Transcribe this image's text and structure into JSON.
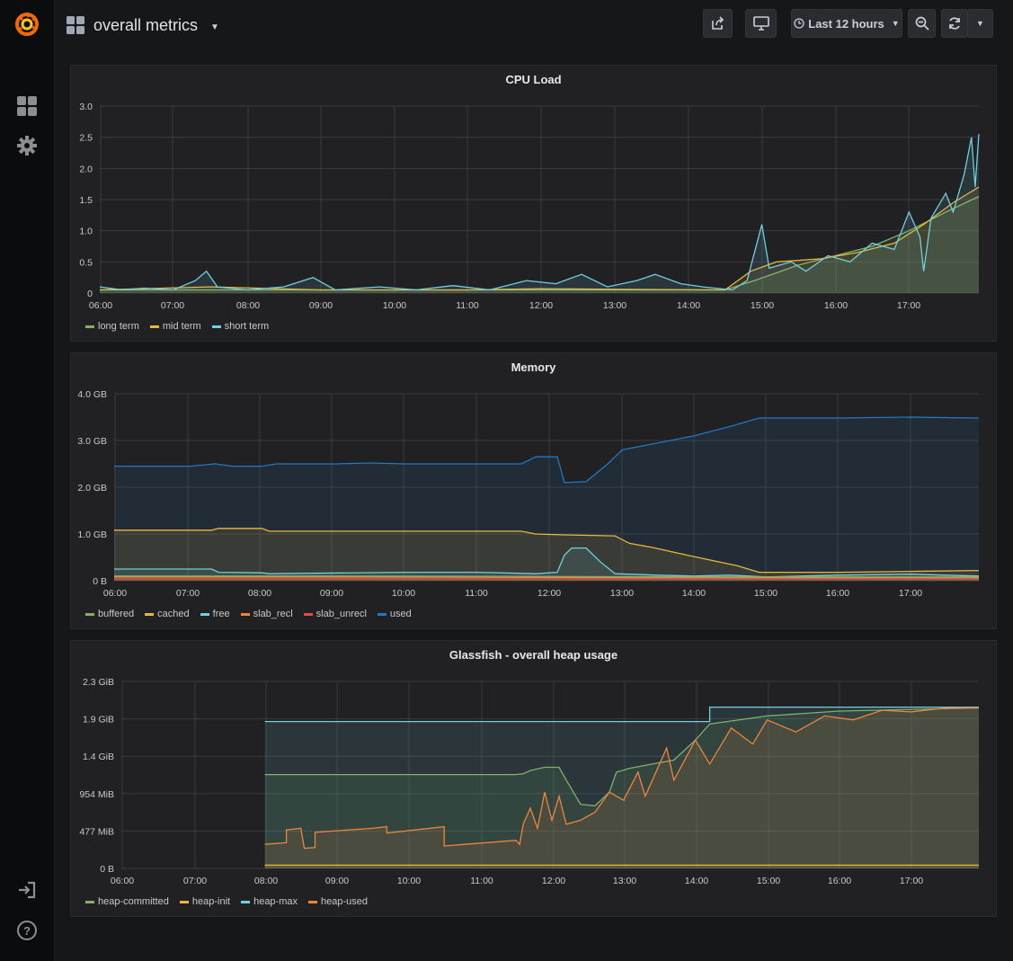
{
  "dashboard": {
    "title": "overall metrics"
  },
  "toolbar": {
    "time_range_label": "Last 12 hours"
  },
  "colors": {
    "green": "#7eb26d",
    "yellow": "#eab839",
    "cyan": "#6ed0e0",
    "orange": "#ef843c",
    "red": "#e24d42",
    "blue": "#1f78c1"
  },
  "panels": [
    {
      "title": "CPU Load",
      "legend": [
        {
          "label": "long term",
          "color": "#7eb26d"
        },
        {
          "label": "mid term",
          "color": "#eab839"
        },
        {
          "label": "short term",
          "color": "#6ed0e0"
        }
      ]
    },
    {
      "title": "Memory",
      "legend": [
        {
          "label": "buffered",
          "color": "#7eb26d"
        },
        {
          "label": "cached",
          "color": "#eab839"
        },
        {
          "label": "free",
          "color": "#6ed0e0"
        },
        {
          "label": "slab_recl",
          "color": "#ef843c"
        },
        {
          "label": "slab_unrecl",
          "color": "#e24d42"
        },
        {
          "label": "used",
          "color": "#1f78c1"
        }
      ]
    },
    {
      "title": "Glassfish - overall heap usage",
      "legend": [
        {
          "label": "heap-committed",
          "color": "#7eb26d"
        },
        {
          "label": "heap-init",
          "color": "#eab839"
        },
        {
          "label": "heap-max",
          "color": "#6ed0e0"
        },
        {
          "label": "heap-used",
          "color": "#ef843c"
        }
      ]
    }
  ],
  "chart_data": [
    {
      "type": "line",
      "title": "CPU Load",
      "x_ticks": [
        "06:00",
        "07:00",
        "08:00",
        "09:00",
        "10:00",
        "11:00",
        "12:00",
        "13:00",
        "14:00",
        "15:00",
        "16:00",
        "17:00"
      ],
      "y_ticks": [
        "0",
        "0.5",
        "1.0",
        "1.5",
        "2.0",
        "2.5",
        "3.0"
      ],
      "x_range": [
        6.0,
        17.95
      ],
      "y_range": [
        0,
        3.0
      ],
      "series": [
        {
          "name": "long term",
          "color": "#7eb26d",
          "points": [
            [
              6.0,
              0.05
            ],
            [
              8.0,
              0.05
            ],
            [
              10.0,
              0.05
            ],
            [
              12.0,
              0.05
            ],
            [
              14.5,
              0.05
            ],
            [
              14.9,
              0.2
            ],
            [
              15.5,
              0.45
            ],
            [
              16.0,
              0.6
            ],
            [
              16.5,
              0.75
            ],
            [
              17.0,
              1.0
            ],
            [
              17.5,
              1.3
            ],
            [
              17.95,
              1.55
            ]
          ]
        },
        {
          "name": "mid term",
          "color": "#eab839",
          "points": [
            [
              6.0,
              0.05
            ],
            [
              7.5,
              0.1
            ],
            [
              9.0,
              0.05
            ],
            [
              11.0,
              0.05
            ],
            [
              12.0,
              0.07
            ],
            [
              13.0,
              0.06
            ],
            [
              14.5,
              0.05
            ],
            [
              14.85,
              0.35
            ],
            [
              15.2,
              0.5
            ],
            [
              15.8,
              0.55
            ],
            [
              16.3,
              0.65
            ],
            [
              16.8,
              0.8
            ],
            [
              17.2,
              1.1
            ],
            [
              17.6,
              1.45
            ],
            [
              17.95,
              1.7
            ]
          ]
        },
        {
          "name": "short term",
          "color": "#6ed0e0",
          "points": [
            [
              6.0,
              0.1
            ],
            [
              6.3,
              0.05
            ],
            [
              6.6,
              0.08
            ],
            [
              7.0,
              0.05
            ],
            [
              7.3,
              0.2
            ],
            [
              7.45,
              0.35
            ],
            [
              7.6,
              0.1
            ],
            [
              8.0,
              0.05
            ],
            [
              8.5,
              0.1
            ],
            [
              8.9,
              0.25
            ],
            [
              9.2,
              0.05
            ],
            [
              9.8,
              0.1
            ],
            [
              10.3,
              0.05
            ],
            [
              10.8,
              0.12
            ],
            [
              11.3,
              0.05
            ],
            [
              11.8,
              0.2
            ],
            [
              12.2,
              0.15
            ],
            [
              12.55,
              0.3
            ],
            [
              12.9,
              0.1
            ],
            [
              13.3,
              0.2
            ],
            [
              13.55,
              0.3
            ],
            [
              13.9,
              0.15
            ],
            [
              14.2,
              0.1
            ],
            [
              14.6,
              0.05
            ],
            [
              14.8,
              0.2
            ],
            [
              15.0,
              1.1
            ],
            [
              15.1,
              0.4
            ],
            [
              15.4,
              0.5
            ],
            [
              15.6,
              0.35
            ],
            [
              15.9,
              0.6
            ],
            [
              16.2,
              0.5
            ],
            [
              16.5,
              0.8
            ],
            [
              16.8,
              0.7
            ],
            [
              17.0,
              1.3
            ],
            [
              17.15,
              0.9
            ],
            [
              17.2,
              0.35
            ],
            [
              17.3,
              1.2
            ],
            [
              17.5,
              1.6
            ],
            [
              17.6,
              1.3
            ],
            [
              17.75,
              1.9
            ],
            [
              17.85,
              2.5
            ],
            [
              17.9,
              1.7
            ],
            [
              17.95,
              2.55
            ]
          ]
        }
      ]
    },
    {
      "type": "area",
      "title": "Memory",
      "x_ticks": [
        "06:00",
        "07:00",
        "08:00",
        "09:00",
        "10:00",
        "11:00",
        "12:00",
        "13:00",
        "14:00",
        "15:00",
        "16:00",
        "17:00"
      ],
      "y_ticks": [
        "0 B",
        "1.0 GB",
        "2.0 GB",
        "3.0 GB",
        "4.0 GB"
      ],
      "x_range": [
        5.95,
        17.95
      ],
      "y_range": [
        0,
        4.0
      ],
      "series": [
        {
          "name": "used",
          "color": "#1f78c1",
          "points": [
            [
              5.95,
              2.45
            ],
            [
              7.0,
              2.45
            ],
            [
              7.35,
              2.5
            ],
            [
              7.6,
              2.45
            ],
            [
              8.0,
              2.45
            ],
            [
              8.2,
              2.5
            ],
            [
              9.0,
              2.5
            ],
            [
              9.5,
              2.52
            ],
            [
              10.0,
              2.5
            ],
            [
              11.0,
              2.5
            ],
            [
              11.6,
              2.5
            ],
            [
              11.8,
              2.65
            ],
            [
              12.1,
              2.65
            ],
            [
              12.2,
              2.1
            ],
            [
              12.5,
              2.12
            ],
            [
              12.8,
              2.5
            ],
            [
              13.0,
              2.8
            ],
            [
              13.5,
              2.95
            ],
            [
              14.0,
              3.1
            ],
            [
              14.5,
              3.3
            ],
            [
              14.9,
              3.48
            ],
            [
              15.5,
              3.48
            ],
            [
              16.0,
              3.48
            ],
            [
              17.0,
              3.5
            ],
            [
              17.95,
              3.48
            ]
          ]
        },
        {
          "name": "cached",
          "color": "#eab839",
          "points": [
            [
              5.95,
              1.08
            ],
            [
              7.3,
              1.08
            ],
            [
              7.4,
              1.12
            ],
            [
              8.0,
              1.12
            ],
            [
              8.1,
              1.06
            ],
            [
              10.0,
              1.06
            ],
            [
              11.6,
              1.06
            ],
            [
              11.8,
              1.0
            ],
            [
              12.2,
              0.98
            ],
            [
              12.9,
              0.96
            ],
            [
              13.1,
              0.8
            ],
            [
              13.4,
              0.72
            ],
            [
              13.8,
              0.58
            ],
            [
              14.2,
              0.45
            ],
            [
              14.6,
              0.32
            ],
            [
              14.9,
              0.18
            ],
            [
              15.3,
              0.18
            ],
            [
              16.0,
              0.18
            ],
            [
              17.0,
              0.2
            ],
            [
              17.95,
              0.22
            ]
          ]
        },
        {
          "name": "free",
          "color": "#6ed0e0",
          "points": [
            [
              5.95,
              0.25
            ],
            [
              7.3,
              0.25
            ],
            [
              7.4,
              0.18
            ],
            [
              8.0,
              0.17
            ],
            [
              8.1,
              0.15
            ],
            [
              10.0,
              0.18
            ],
            [
              11.0,
              0.18
            ],
            [
              11.8,
              0.15
            ],
            [
              12.1,
              0.18
            ],
            [
              12.2,
              0.55
            ],
            [
              12.3,
              0.7
            ],
            [
              12.5,
              0.7
            ],
            [
              12.7,
              0.4
            ],
            [
              12.9,
              0.15
            ],
            [
              13.5,
              0.12
            ],
            [
              14.0,
              0.1
            ],
            [
              14.5,
              0.12
            ],
            [
              15.0,
              0.08
            ],
            [
              15.5,
              0.1
            ],
            [
              16.0,
              0.12
            ],
            [
              17.0,
              0.14
            ],
            [
              17.95,
              0.1
            ]
          ]
        },
        {
          "name": "buffered",
          "color": "#7eb26d",
          "points": [
            [
              5.95,
              0.1
            ],
            [
              9.0,
              0.1
            ],
            [
              12.0,
              0.09
            ],
            [
              15.0,
              0.08
            ],
            [
              17.95,
              0.08
            ]
          ]
        },
        {
          "name": "slab_recl",
          "color": "#ef843c",
          "points": [
            [
              5.95,
              0.08
            ],
            [
              9.0,
              0.08
            ],
            [
              12.0,
              0.07
            ],
            [
              15.0,
              0.06
            ],
            [
              17.95,
              0.06
            ]
          ]
        },
        {
          "name": "slab_unrecl",
          "color": "#e24d42",
          "points": [
            [
              5.95,
              0.04
            ],
            [
              17.95,
              0.04
            ]
          ]
        }
      ]
    },
    {
      "type": "area",
      "title": "Glassfish - overall heap usage",
      "x_ticks": [
        "06:00",
        "07:00",
        "08:00",
        "09:00",
        "10:00",
        "11:00",
        "12:00",
        "13:00",
        "14:00",
        "15:00",
        "16:00",
        "17:00"
      ],
      "y_ticks": [
        "0 B",
        "477 MiB",
        "954 MiB",
        "1.4 GiB",
        "1.9 GiB",
        "2.3 GiB"
      ],
      "x_range": [
        6.0,
        17.95
      ],
      "y_range": [
        0,
        2.33
      ],
      "series": [
        {
          "name": "heap-max",
          "color": "#6ed0e0",
          "points": [
            [
              8.0,
              1.83
            ],
            [
              12.0,
              1.83
            ],
            [
              14.2,
              1.83
            ],
            [
              14.2,
              2.01
            ],
            [
              17.95,
              2.01
            ]
          ]
        },
        {
          "name": "heap-committed",
          "color": "#7eb26d",
          "points": [
            [
              8.0,
              1.17
            ],
            [
              11.5,
              1.17
            ],
            [
              11.6,
              1.18
            ],
            [
              11.7,
              1.22
            ],
            [
              11.9,
              1.26
            ],
            [
              12.1,
              1.26
            ],
            [
              12.2,
              1.1
            ],
            [
              12.4,
              0.8
            ],
            [
              12.6,
              0.78
            ],
            [
              12.8,
              0.95
            ],
            [
              12.9,
              1.2
            ],
            [
              13.1,
              1.25
            ],
            [
              13.4,
              1.3
            ],
            [
              13.7,
              1.35
            ],
            [
              14.0,
              1.6
            ],
            [
              14.2,
              1.8
            ],
            [
              15.0,
              1.9
            ],
            [
              16.0,
              1.96
            ],
            [
              17.95,
              2.0
            ]
          ]
        },
        {
          "name": "heap-used",
          "color": "#ef843c",
          "points": [
            [
              8.0,
              0.3
            ],
            [
              8.3,
              0.32
            ],
            [
              8.3,
              0.48
            ],
            [
              8.5,
              0.5
            ],
            [
              8.55,
              0.25
            ],
            [
              8.7,
              0.26
            ],
            [
              8.7,
              0.45
            ],
            [
              9.5,
              0.5
            ],
            [
              9.7,
              0.52
            ],
            [
              9.7,
              0.44
            ],
            [
              10.5,
              0.52
            ],
            [
              10.5,
              0.28
            ],
            [
              11.5,
              0.35
            ],
            [
              11.55,
              0.3
            ],
            [
              11.6,
              0.55
            ],
            [
              11.7,
              0.75
            ],
            [
              11.8,
              0.5
            ],
            [
              11.9,
              0.95
            ],
            [
              12.0,
              0.6
            ],
            [
              12.1,
              0.9
            ],
            [
              12.2,
              0.55
            ],
            [
              12.4,
              0.6
            ],
            [
              12.6,
              0.7
            ],
            [
              12.8,
              0.95
            ],
            [
              13.0,
              0.85
            ],
            [
              13.2,
              1.2
            ],
            [
              13.3,
              0.9
            ],
            [
              13.6,
              1.5
            ],
            [
              13.7,
              1.1
            ],
            [
              14.0,
              1.6
            ],
            [
              14.2,
              1.3
            ],
            [
              14.5,
              1.75
            ],
            [
              14.8,
              1.55
            ],
            [
              15.0,
              1.85
            ],
            [
              15.4,
              1.7
            ],
            [
              15.8,
              1.9
            ],
            [
              16.2,
              1.85
            ],
            [
              16.6,
              1.97
            ],
            [
              17.0,
              1.95
            ],
            [
              17.5,
              2.0
            ],
            [
              17.95,
              2.0
            ]
          ]
        },
        {
          "name": "heap-init",
          "color": "#eab839",
          "points": [
            [
              8.0,
              0.04
            ],
            [
              17.95,
              0.04
            ]
          ]
        }
      ]
    }
  ]
}
